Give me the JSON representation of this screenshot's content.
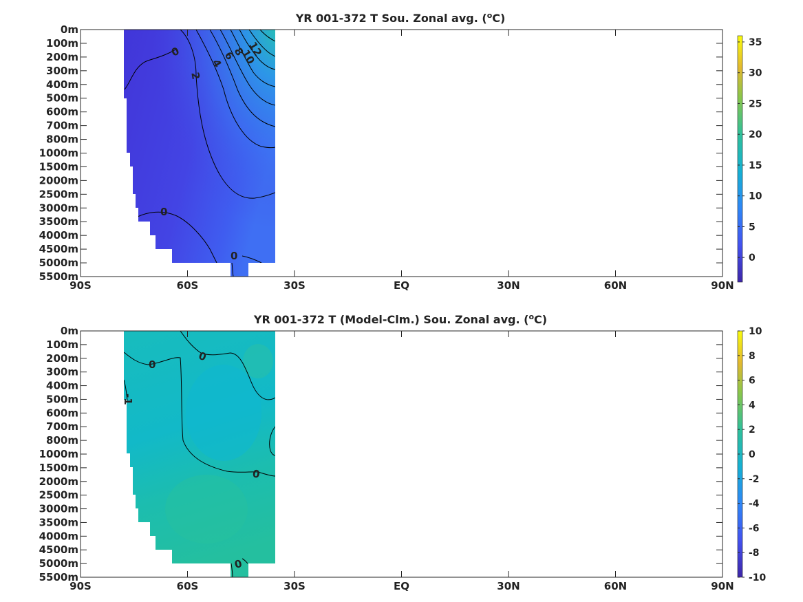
{
  "chart_data": [
    {
      "type": "heatmap",
      "title": "YR 001-372 T Sou. Zonal avg. (",
      "title_superscript": "o",
      "title_suffix": "C)",
      "xlabel": "",
      "ylabel": "",
      "x_ticks": [
        "90S",
        "60S",
        "30S",
        "EQ",
        "30N",
        "60N",
        "90N"
      ],
      "y_ticks": [
        "0m",
        "100m",
        "200m",
        "300m",
        "400m",
        "500m",
        "600m",
        "700m",
        "800m",
        "1000m",
        "1500m",
        "2000m",
        "2500m",
        "3000m",
        "3500m",
        "4000m",
        "4500m",
        "5000m",
        "5500m"
      ],
      "colorbar": {
        "min": -4,
        "max": 36,
        "ticks": [
          35,
          30,
          25,
          20,
          15,
          10,
          5,
          0
        ]
      },
      "contour_labels": [
        {
          "value": "0",
          "lat": -56,
          "depth": "100m"
        },
        {
          "value": "2",
          "lat": -53,
          "depth": "400m"
        },
        {
          "value": "4",
          "lat": -47,
          "depth": "200m"
        },
        {
          "value": "6",
          "lat": -45,
          "depth": "100m"
        },
        {
          "value": "8",
          "lat": -44,
          "depth": "50m"
        },
        {
          "value": "10",
          "lat": -43,
          "depth": "100m"
        },
        {
          "value": "12",
          "lat": -42,
          "depth": "50m"
        },
        {
          "value": "0",
          "lat": -68,
          "depth": "3300m"
        },
        {
          "value": "0",
          "lat": -48,
          "depth": "4700m"
        }
      ],
      "data_region": {
        "lat_range": [
          -78,
          -36
        ],
        "note": "southern ocean only; remainder is blank (land / no data)"
      }
    },
    {
      "type": "heatmap",
      "title": "YR 001-372 T (Model-Clm.) Sou. Zonal avg. (",
      "title_superscript": "o",
      "title_suffix": "C)",
      "xlabel": "",
      "ylabel": "",
      "x_ticks": [
        "90S",
        "60S",
        "30S",
        "EQ",
        "30N",
        "60N",
        "90N"
      ],
      "y_ticks": [
        "0m",
        "100m",
        "200m",
        "300m",
        "400m",
        "500m",
        "600m",
        "700m",
        "800m",
        "1000m",
        "1500m",
        "2000m",
        "2500m",
        "3000m",
        "3500m",
        "4000m",
        "4500m",
        "5000m",
        "5500m"
      ],
      "colorbar": {
        "min": -10,
        "max": 10,
        "ticks": [
          10,
          8,
          6,
          4,
          2,
          0,
          -2,
          -4,
          -6,
          -8,
          -10
        ]
      },
      "contour_labels": [
        {
          "value": "0",
          "lat": -73,
          "depth": "250m"
        },
        {
          "value": "0",
          "lat": -57,
          "depth": "200m"
        },
        {
          "value": "-1",
          "lat": -79,
          "depth": "500m"
        },
        {
          "value": "0",
          "lat": -41,
          "depth": "1500m"
        },
        {
          "value": "0",
          "lat": -46,
          "depth": "5000m"
        }
      ],
      "data_region": {
        "lat_range": [
          -78,
          -36
        ],
        "note": "southern ocean only; remainder is blank (land / no data)"
      }
    }
  ]
}
